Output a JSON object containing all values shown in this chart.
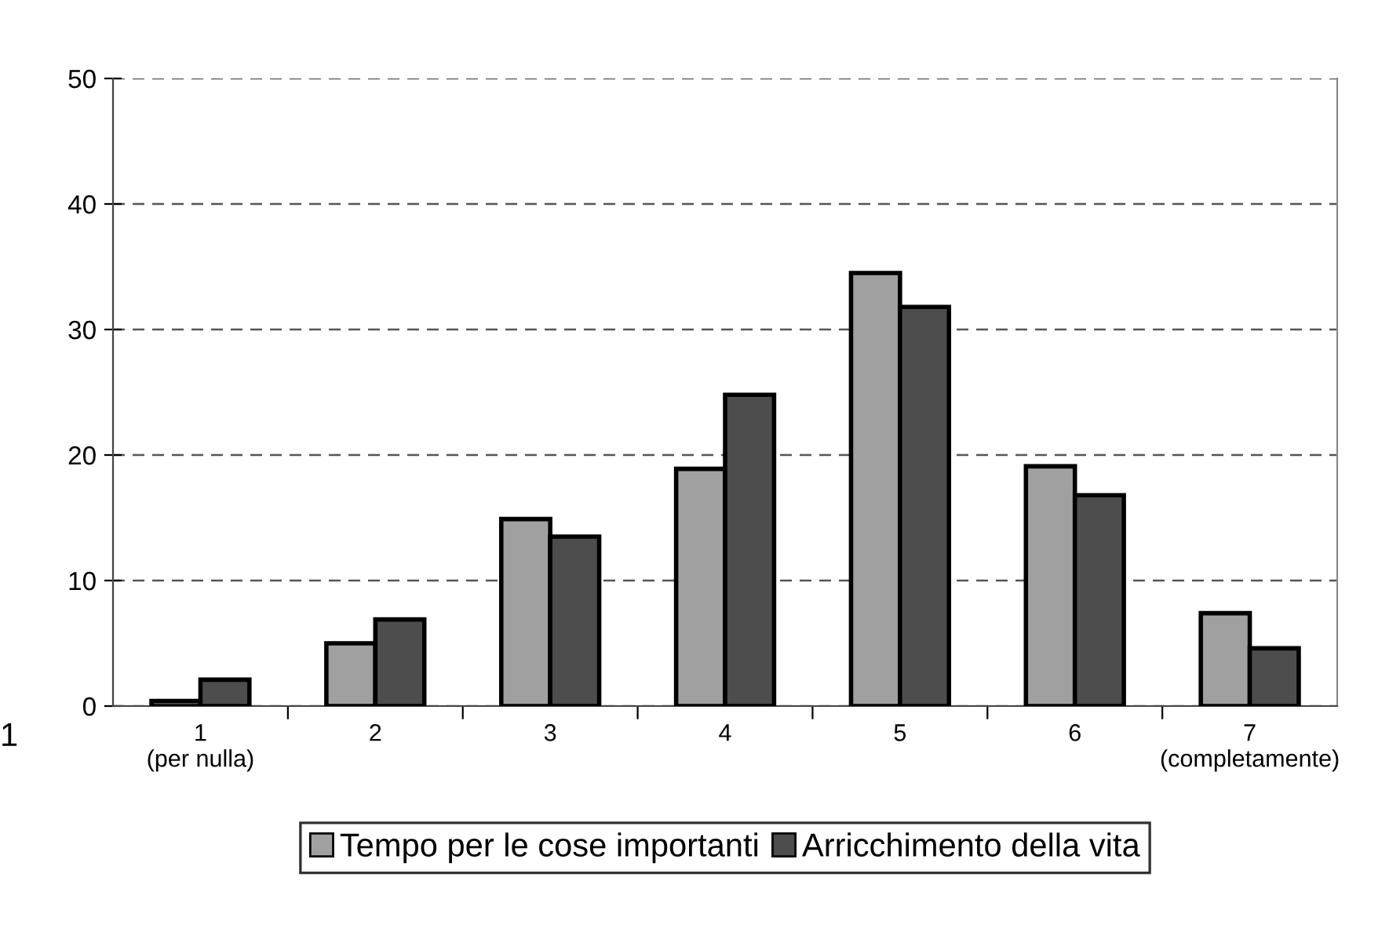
{
  "chart_data": {
    "type": "bar",
    "categories": [
      "1\n(per nulla)",
      "2",
      "3",
      "4",
      "5",
      "6",
      "7\n(completamente)"
    ],
    "series": [
      {
        "name": "Tempo per le cose importanti",
        "color": "#a0a0a0",
        "values": [
          0.4,
          5.0,
          14.9,
          18.9,
          34.5,
          19.1,
          7.4
        ]
      },
      {
        "name": "Arricchimento della vita",
        "color": "#4d4d4d",
        "values": [
          2.1,
          6.9,
          13.5,
          24.8,
          31.8,
          16.8,
          4.6
        ]
      }
    ],
    "ylim": [
      0,
      50
    ],
    "yticks": [
      0,
      10,
      20,
      30,
      40,
      50
    ],
    "grid": "y",
    "line_style": "dashed",
    "legend": "bottom",
    "annotations": [
      "1"
    ]
  }
}
